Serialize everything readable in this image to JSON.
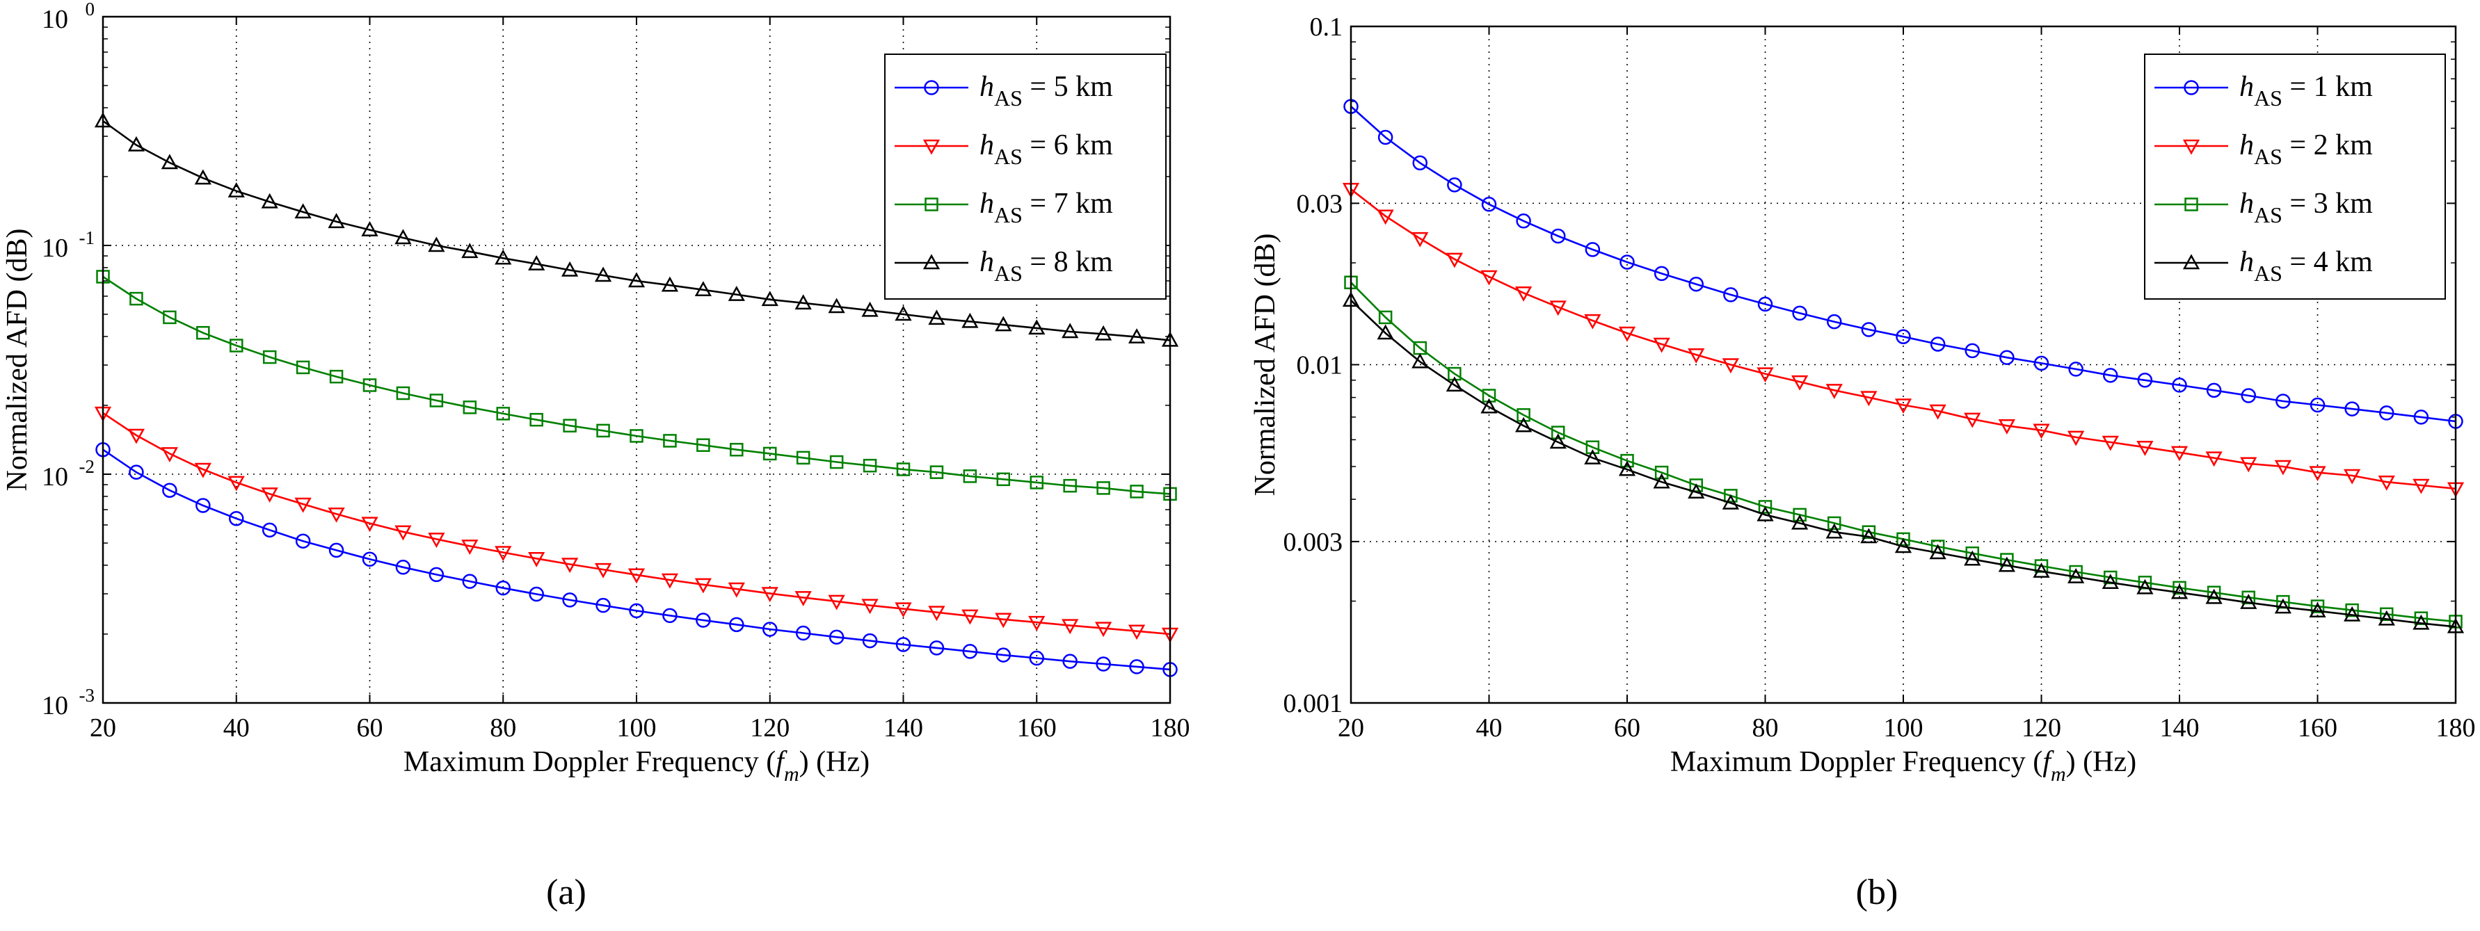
{
  "chart_data": [
    {
      "type": "line",
      "caption": "(a)",
      "xlabel": "Maximum Doppler Frequency (",
      "xlabel_var": "f",
      "xlabel_sub": "m",
      "xlabel_end": ") (Hz)",
      "ylabel": "Normalized AFD (dB)",
      "xlim": [
        20,
        180
      ],
      "ylim": [
        0.001,
        1
      ],
      "yscale": "log",
      "x_ticks": [
        "20",
        "40",
        "60",
        "80",
        "100",
        "120",
        "140",
        "160",
        "180"
      ],
      "y_ticks": [
        {
          "base": "10",
          "exp": "0"
        },
        {
          "base": "10",
          "exp": "-1"
        },
        {
          "base": "10",
          "exp": "-2"
        },
        {
          "base": "10",
          "exp": "-3"
        }
      ],
      "grid": true,
      "legend_position": "top-right",
      "x": [
        20,
        25,
        30,
        35,
        40,
        45,
        50,
        55,
        60,
        65,
        70,
        75,
        80,
        85,
        90,
        95,
        100,
        105,
        110,
        115,
        120,
        125,
        130,
        135,
        140,
        145,
        150,
        155,
        160,
        165,
        170,
        175,
        180
      ],
      "series": [
        {
          "var": "h",
          "sub": "AS",
          "rest": " = 5 km",
          "color": "#0000ff",
          "marker": "circle",
          "values": [
            0.0128,
            0.0102,
            0.0085,
            0.0073,
            0.0064,
            0.0057,
            0.0051,
            0.00465,
            0.00425,
            0.00392,
            0.00364,
            0.0034,
            0.00318,
            0.00299,
            0.00282,
            0.00267,
            0.00253,
            0.00241,
            0.0023,
            0.0022,
            0.0021,
            0.00202,
            0.00194,
            0.00187,
            0.0018,
            0.00174,
            0.00168,
            0.00162,
            0.00157,
            0.00152,
            0.00148,
            0.00144,
            0.0014
          ]
        },
        {
          "var": "h",
          "sub": "AS",
          "rest": " = 6 km",
          "color": "#ff0000",
          "marker": "triangle-down",
          "values": [
            0.0185,
            0.0148,
            0.0123,
            0.0105,
            0.0092,
            0.0082,
            0.0074,
            0.0067,
            0.0061,
            0.0056,
            0.0052,
            0.00485,
            0.00455,
            0.00428,
            0.00404,
            0.00383,
            0.00363,
            0.00345,
            0.00329,
            0.00315,
            0.00301,
            0.00289,
            0.00278,
            0.00267,
            0.00258,
            0.00249,
            0.0024,
            0.00232,
            0.00225,
            0.00218,
            0.00212,
            0.00206,
            0.002
          ]
        },
        {
          "var": "h",
          "sub": "AS",
          "rest": " = 7 km",
          "color": "#008000",
          "marker": "square",
          "values": [
            0.073,
            0.0585,
            0.0485,
            0.0415,
            0.0365,
            0.0325,
            0.0293,
            0.0267,
            0.0245,
            0.0226,
            0.021,
            0.0196,
            0.0184,
            0.0173,
            0.0163,
            0.0155,
            0.0147,
            0.014,
            0.0134,
            0.0128,
            0.0123,
            0.0118,
            0.0113,
            0.0109,
            0.0105,
            0.0102,
            0.0098,
            0.0095,
            0.0092,
            0.0089,
            0.0087,
            0.0084,
            0.0082
          ]
        },
        {
          "var": "h",
          "sub": "AS",
          "rest": " = 8 km",
          "color": "#000000",
          "marker": "triangle-up",
          "values": [
            0.35,
            0.275,
            0.23,
            0.197,
            0.173,
            0.155,
            0.14,
            0.127,
            0.117,
            0.108,
            0.1,
            0.094,
            0.088,
            0.083,
            0.078,
            0.074,
            0.07,
            0.067,
            0.064,
            0.061,
            0.058,
            0.056,
            0.054,
            0.052,
            0.05,
            0.048,
            0.0465,
            0.045,
            0.0435,
            0.042,
            0.041,
            0.0398,
            0.0385
          ]
        }
      ]
    },
    {
      "type": "line",
      "caption": "(b)",
      "xlabel": "Maximum Doppler Frequency (",
      "xlabel_var": "f",
      "xlabel_sub": "m",
      "xlabel_end": ") (Hz)",
      "ylabel": "Normalized AFD (dB)",
      "xlim": [
        20,
        180
      ],
      "ylim": [
        0.001,
        0.1
      ],
      "yscale": "log",
      "x_ticks": [
        "20",
        "40",
        "60",
        "80",
        "100",
        "120",
        "140",
        "160",
        "180"
      ],
      "y_tick_values": [
        0.1,
        0.03,
        0.01,
        0.003,
        0.001
      ],
      "y_ticks": [
        "0.1",
        "0.03",
        "0.01",
        "0.003",
        "0.001"
      ],
      "grid": true,
      "legend_position": "top-right",
      "x": [
        20,
        25,
        30,
        35,
        40,
        45,
        50,
        55,
        60,
        65,
        70,
        75,
        80,
        85,
        90,
        95,
        100,
        105,
        110,
        115,
        120,
        125,
        130,
        135,
        140,
        145,
        150,
        155,
        160,
        165,
        170,
        175,
        180
      ],
      "series": [
        {
          "var": "h",
          "sub": "AS",
          "rest": " = 1 km",
          "color": "#0000ff",
          "marker": "circle",
          "values": [
            0.058,
            0.047,
            0.0395,
            0.034,
            0.0298,
            0.0266,
            0.024,
            0.0219,
            0.0201,
            0.0186,
            0.0173,
            0.0161,
            0.0151,
            0.0142,
            0.0134,
            0.0127,
            0.0121,
            0.0115,
            0.011,
            0.0105,
            0.0101,
            0.0097,
            0.0093,
            0.009,
            0.0087,
            0.0084,
            0.0081,
            0.0078,
            0.0076,
            0.0074,
            0.0072,
            0.007,
            0.0068
          ]
        },
        {
          "var": "h",
          "sub": "AS",
          "rest": " = 2 km",
          "color": "#ff0000",
          "marker": "triangle-down",
          "values": [
            0.033,
            0.0275,
            0.0236,
            0.0205,
            0.0182,
            0.0163,
            0.0148,
            0.0135,
            0.0124,
            0.0115,
            0.0107,
            0.01,
            0.0094,
            0.0089,
            0.0084,
            0.008,
            0.0076,
            0.0073,
            0.0069,
            0.0066,
            0.0064,
            0.0061,
            0.0059,
            0.0057,
            0.0055,
            0.0053,
            0.0051,
            0.005,
            0.0048,
            0.0047,
            0.0045,
            0.0044,
            0.0043
          ]
        },
        {
          "var": "h",
          "sub": "AS",
          "rest": " = 3 km",
          "color": "#008000",
          "marker": "square",
          "values": [
            0.0175,
            0.0138,
            0.0112,
            0.0094,
            0.0081,
            0.0071,
            0.0063,
            0.0057,
            0.0052,
            0.0048,
            0.0044,
            0.0041,
            0.0038,
            0.0036,
            0.0034,
            0.0032,
            0.00305,
            0.0029,
            0.00277,
            0.00265,
            0.00254,
            0.00244,
            0.00235,
            0.00227,
            0.00219,
            0.00212,
            0.00205,
            0.00199,
            0.00193,
            0.00188,
            0.00183,
            0.00178,
            0.00174
          ]
        },
        {
          "var": "h",
          "sub": "AS",
          "rest": " = 4 km",
          "color": "#000000",
          "marker": "triangle-up",
          "values": [
            0.0155,
            0.0124,
            0.0102,
            0.0087,
            0.0075,
            0.0066,
            0.0059,
            0.0053,
            0.0049,
            0.0045,
            0.0042,
            0.0039,
            0.0036,
            0.0034,
            0.0032,
            0.0031,
            0.0029,
            0.00278,
            0.00266,
            0.00255,
            0.00245,
            0.00236,
            0.00227,
            0.00219,
            0.00212,
            0.00205,
            0.00198,
            0.00192,
            0.00187,
            0.00182,
            0.00177,
            0.00172,
            0.00168
          ]
        }
      ]
    }
  ]
}
